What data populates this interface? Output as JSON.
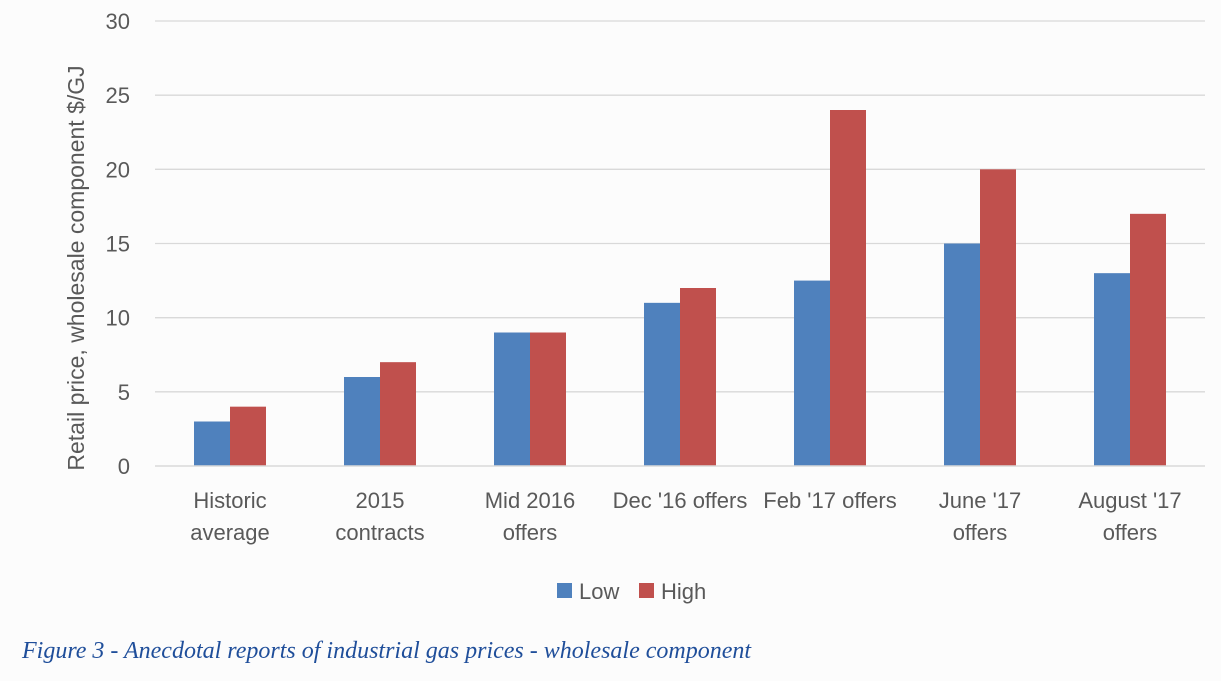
{
  "chart_data": {
    "type": "bar",
    "title": "",
    "xlabel": "",
    "ylabel": "Retail price, wholesale component  $/GJ",
    "ylim": [
      0,
      30
    ],
    "yticks": [
      0,
      5,
      10,
      15,
      20,
      25,
      30
    ],
    "grid": true,
    "legend_position": "bottom",
    "categories": [
      [
        "Historic",
        "average"
      ],
      [
        "2015",
        "contracts"
      ],
      [
        "Mid 2016",
        "offers"
      ],
      [
        "Dec '16 offers"
      ],
      [
        "Feb '17 offers"
      ],
      [
        "June '17",
        "offers"
      ],
      [
        "August '17",
        "offers"
      ]
    ],
    "series": [
      {
        "name": "Low",
        "color": "#4f81bd",
        "values": [
          3,
          6,
          9,
          11,
          12.5,
          15,
          13
        ]
      },
      {
        "name": "High",
        "color": "#c0504d",
        "values": [
          4,
          7,
          9,
          12,
          24,
          20,
          17
        ]
      }
    ]
  },
  "caption": "Figure 3 - Anecdotal reports of industrial gas prices - wholesale component"
}
